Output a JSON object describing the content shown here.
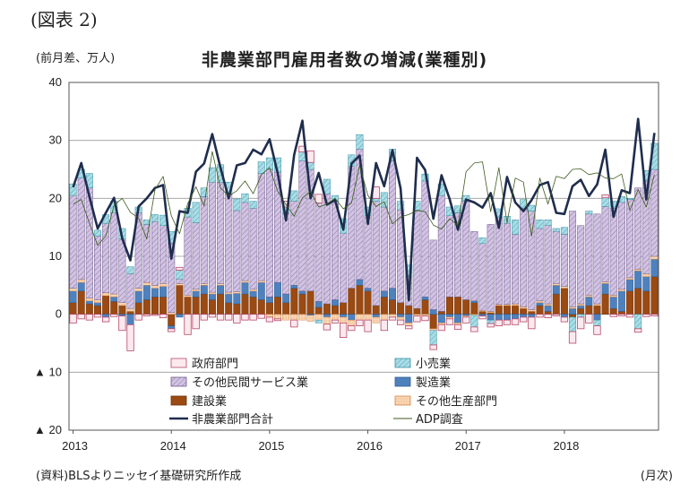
{
  "figure_label": "(図表 2)",
  "unit_label": "(前月差、万人)",
  "source_note": "(資料)BLSよりニッセイ基礎研究所作成",
  "x_unit_label": "(月次)",
  "chart_data": {
    "type": "bar",
    "stacked": true,
    "title": "非農業部門雇用者数の増減(業種別)",
    "ylim": [
      -20,
      40
    ],
    "y_ticks": [
      {
        "value": 40,
        "label": "40"
      },
      {
        "value": 30,
        "label": "30"
      },
      {
        "value": 20,
        "label": "20"
      },
      {
        "value": 10,
        "label": "10"
      },
      {
        "value": 0,
        "label": "0"
      },
      {
        "value": -10,
        "label": "▲ 10"
      },
      {
        "value": -20,
        "label": "▲ 20"
      }
    ],
    "x_ticks": [
      "2013",
      "2014",
      "2015",
      "2016",
      "2017",
      "2018"
    ],
    "start_period": "2013-01",
    "grid": "horizontal",
    "legend_position": "bottom-inside",
    "colors": {
      "government": "#fbe9ee",
      "government_edge": "#b5496a",
      "retail": "#a9dde6",
      "other_services": "#d3c3e3",
      "manufacturing": "#4f81bd",
      "construction": "#9a4a12",
      "other_production": "#fbd6b4",
      "total_line": "#1f2d4d",
      "adp_line": "#3d5a1e"
    },
    "series": [
      {
        "key": "government",
        "name": "政府部門",
        "values": [
          -1.5,
          -0.8,
          -1,
          -0.5,
          -0.8,
          -0.4,
          -2.5,
          -4.5,
          -1,
          -0.3,
          -0.2,
          -0.6,
          -0.5,
          0.5,
          -3.5,
          -2.5,
          -1,
          -0.5,
          -1,
          -1,
          -1.5,
          -1,
          -1,
          -0.7,
          -0.8,
          -0.3,
          1,
          -1.2,
          1,
          2,
          1.5,
          -1,
          -0.5,
          -2.5,
          -0.8,
          -1,
          -2,
          2,
          -1.8,
          -0.5,
          -0.8,
          -0.5,
          -1,
          -0.8,
          -0.8,
          -1,
          -1,
          -0.8,
          -1,
          -0.8,
          -0.5,
          -0.6,
          -1,
          -0.8,
          -1,
          -0.8,
          -2,
          -0.5,
          -0.6,
          -0.3,
          -0.8,
          -2,
          -2,
          -1.5,
          -1.5,
          0.5,
          -0.4,
          -0.3,
          -0.5,
          -0.6,
          -0.4,
          -0.3
        ]
      },
      {
        "key": "retail",
        "name": "小売業",
        "values": [
          2,
          1.5,
          2.5,
          1,
          1.5,
          2,
          1.8,
          1.2,
          1,
          0.8,
          1.2,
          1.8,
          2,
          1.5,
          1.5,
          3.5,
          1.5,
          2.5,
          3,
          2,
          2,
          1.5,
          1.2,
          2,
          2,
          2.5,
          1,
          1.8,
          1.5,
          1.2,
          -0.5,
          2.5,
          1,
          2.5,
          2,
          2.5,
          1.5,
          0.5,
          2.5,
          2,
          1.5,
          2,
          1.5,
          1.2,
          -2.5,
          2,
          1.5,
          1.2,
          1,
          -2,
          1,
          -0.6,
          1.5,
          1.2,
          2.5,
          1.5,
          1,
          1.5,
          1,
          0.5,
          1.2,
          -2.5,
          -0.5,
          0.5,
          -1,
          1.5,
          1.2,
          1,
          0.2,
          -2.5,
          1.8,
          4.5
        ]
      },
      {
        "key": "other_services",
        "name": "その他民間サービス業",
        "values": [
          16,
          17.5,
          19,
          11,
          12,
          14,
          11,
          6,
          13,
          10,
          11,
          10,
          12,
          0.8,
          13.5,
          11.5,
          15,
          19,
          17.5,
          17,
          14,
          13.5,
          14,
          18.5,
          22,
          19,
          14,
          14.5,
          22.5,
          21,
          17,
          19,
          17,
          12,
          21,
          22.5,
          12.5,
          18,
          14.5,
          22,
          16,
          5,
          17,
          20,
          12,
          20,
          14,
          14.5,
          17,
          12,
          11.5,
          15,
          15,
          14,
          12,
          17,
          17,
          12.5,
          13.5,
          9,
          9,
          16.5,
          13.5,
          14,
          15.5,
          13,
          15,
          15,
          13.5,
          14,
          16,
          15
        ]
      },
      {
        "key": "manufacturing",
        "name": "製造業",
        "values": [
          2,
          1.5,
          0.5,
          0.5,
          -0.5,
          0.8,
          -0.3,
          -1.8,
          2,
          2.5,
          1.5,
          1.8,
          -0.5,
          -0.5,
          0,
          1,
          1.5,
          1,
          1.5,
          1.5,
          1.8,
          2,
          1,
          3,
          1,
          2.5,
          1.5,
          0.5,
          0.5,
          -0.2,
          1,
          -0.5,
          1,
          -0.5,
          -1,
          1,
          0.5,
          -0.5,
          1,
          2,
          -0.5,
          -1.5,
          0,
          0.5,
          0.8,
          -1.5,
          -0.5,
          -1.5,
          -0.3,
          0.3,
          -0.3,
          -1,
          -1,
          -1,
          -0.8,
          -0.5,
          -0.5,
          0.5,
          1,
          1.5,
          -0.5,
          1,
          0.5,
          1.5,
          -1,
          1.8,
          2,
          3.5,
          2,
          3,
          2.5,
          3
        ]
      },
      {
        "key": "construction",
        "name": "建設業",
        "values": [
          2,
          4,
          1.8,
          1.5,
          3.2,
          2.2,
          1.5,
          0.5,
          2,
          2.5,
          3,
          3,
          -2,
          5,
          3,
          3,
          3.5,
          2.5,
          3.5,
          2,
          1.8,
          3.5,
          3,
          2.5,
          2,
          3,
          2,
          4.5,
          3.5,
          4,
          1.2,
          1.8,
          1.5,
          2,
          4.5,
          5,
          4,
          1.5,
          3,
          2.5,
          2,
          1.5,
          1,
          2.5,
          -2.5,
          0.5,
          3,
          3,
          2.5,
          2,
          0.5,
          0.3,
          1.5,
          1.5,
          1.5,
          1,
          0.5,
          1.5,
          0.5,
          3.5,
          4.5,
          -0.5,
          1,
          1.5,
          1.5,
          3.5,
          1,
          0.5,
          4,
          4.5,
          4,
          6.5
        ]
      },
      {
        "key": "other_production",
        "name": "その他生産部門",
        "values": [
          0.5,
          0.5,
          0.5,
          0.5,
          0.5,
          0.5,
          0.5,
          0.5,
          0.5,
          0.5,
          0.5,
          0.5,
          0.3,
          0.3,
          0.3,
          0.3,
          0.3,
          0.3,
          0.3,
          0.3,
          0.3,
          0.3,
          0.3,
          0.3,
          -0.5,
          -0.8,
          -1,
          -1,
          -1,
          -1,
          -1,
          -1.2,
          -1,
          -1,
          -1,
          -1,
          -1,
          -1,
          -1,
          -0.5,
          -0.5,
          -0.5,
          -0.3,
          -0.3,
          -0.3,
          -0.3,
          -0.3,
          -0.3,
          -0.2,
          -0.2,
          0.2,
          0.2,
          0.2,
          0.2,
          0.3,
          0.3,
          0.3,
          0.3,
          0.3,
          0.3,
          0.3,
          0.3,
          0.3,
          0.3,
          0.3,
          0.3,
          0.3,
          0.3,
          0.3,
          0.3,
          0.5,
          0.5
        ]
      }
    ],
    "lines": [
      {
        "key": "total",
        "name": "非農業部門合計",
        "values": [
          21.9,
          26.1,
          20.3,
          14.8,
          17.5,
          20.1,
          13.1,
          9.3,
          18.6,
          20,
          21.8,
          22.3,
          9.6,
          17.8,
          17.5,
          24.6,
          26,
          31.1,
          25.3,
          20,
          25.7,
          26.1,
          28.4,
          27.6,
          30.2,
          24.3,
          16.2,
          27.5,
          33.4,
          20,
          24.4,
          18.9,
          19.7,
          14.6,
          26,
          27.4,
          15.6,
          26.1,
          22.1,
          28.3,
          21.7,
          2.4,
          27,
          24.9,
          16.5,
          24,
          19.8,
          14.6,
          19.8,
          19.3,
          18.4,
          20.9,
          14.9,
          23.7,
          19.3,
          17.8,
          19.7,
          22.3,
          22.8,
          17.5,
          17.3,
          22.1,
          23.2,
          20.4,
          22.4,
          28.4,
          16.8,
          21.4,
          20.9,
          33.7,
          19.8,
          31.3
        ]
      },
      {
        "key": "adp",
        "name": "ADP調査",
        "values": [
          19,
          19.8,
          15.7,
          11.9,
          13.5,
          18.8,
          20,
          17.6,
          16.6,
          13,
          21.5,
          23.8,
          17,
          13.9,
          19.1,
          22,
          18.7,
          28.1,
          21.8,
          20.4,
          21.3,
          23,
          20.8,
          24.1,
          25.3,
          21.2,
          18.9,
          16.9,
          20.1,
          21.2,
          18.5,
          19,
          20,
          18.2,
          19.2,
          25.7,
          20.5,
          18.6,
          19.4,
          15.6,
          16.8,
          17.2,
          17.9,
          17.7,
          15.4,
          14.7,
          16.5,
          15.3,
          24.6,
          26.1,
          26.3,
          17.7,
          25.3,
          15.8,
          23.5,
          22.8,
          13.5,
          23.5,
          19,
          23.8,
          23.4,
          25,
          25.1,
          24.1,
          24.4,
          23.5,
          23.4,
          24.2,
          17.9,
          21.5,
          18.5,
          24.1
        ]
      }
    ],
    "legend": [
      {
        "key": "government",
        "label": "政府部門",
        "type": "box"
      },
      {
        "key": "retail",
        "label": "小売業",
        "type": "box"
      },
      {
        "key": "other_services",
        "label": "その他民間サービス業",
        "type": "box"
      },
      {
        "key": "manufacturing",
        "label": "製造業",
        "type": "box"
      },
      {
        "key": "construction",
        "label": "建設業",
        "type": "box"
      },
      {
        "key": "other_production",
        "label": "その他生産部門",
        "type": "box"
      },
      {
        "key": "total",
        "label": "非農業部門合計",
        "type": "line"
      },
      {
        "key": "adp",
        "label": "ADP調査",
        "type": "line"
      }
    ]
  }
}
